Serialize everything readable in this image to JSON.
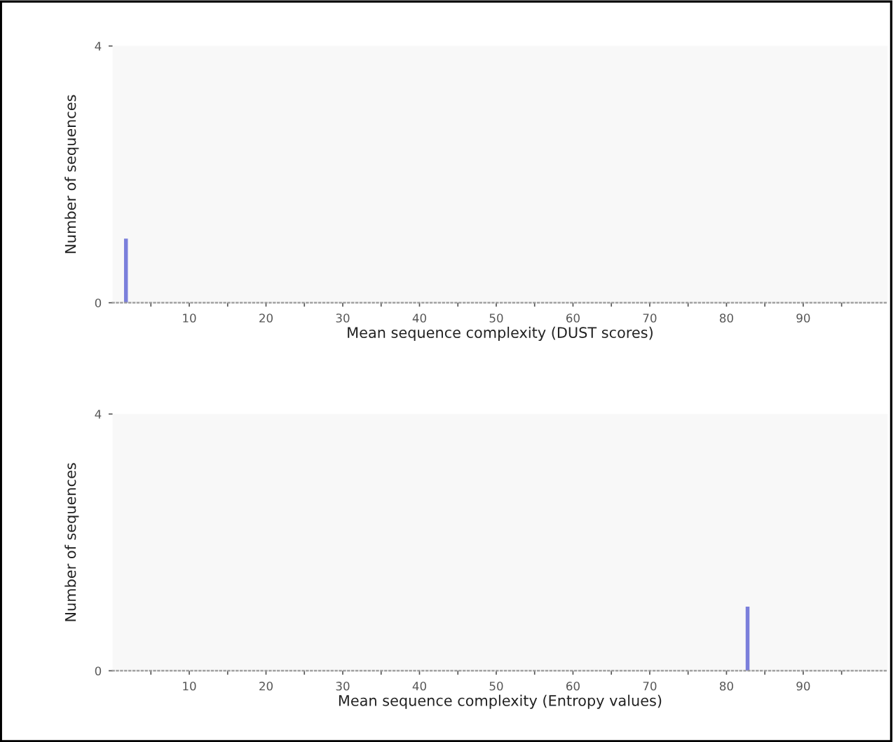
{
  "chart_data": [
    {
      "type": "histogram",
      "xlabel": "Mean sequence complexity (DUST scores)",
      "ylabel": "Number of sequences",
      "bins": [
        1.5,
        2.0
      ],
      "values": [
        1
      ],
      "color": "#7b7fdb",
      "xlim": [
        0,
        101
      ],
      "ylim": [
        0,
        4
      ],
      "yticks": [
        0,
        4
      ],
      "xticks": [
        {
          "value": 5,
          "label": null
        },
        10,
        {
          "value": 15,
          "label": null
        },
        20,
        {
          "value": 25,
          "label": null
        },
        30,
        {
          "value": 35,
          "label": null
        },
        40,
        {
          "value": 45,
          "label": null
        },
        50,
        {
          "value": 55,
          "label": null
        },
        60,
        {
          "value": 65,
          "label": null
        },
        70,
        {
          "value": 75,
          "label": null
        },
        80,
        {
          "value": 85,
          "label": null
        },
        90,
        {
          "value": 95,
          "label": null
        }
      ]
    },
    {
      "type": "histogram",
      "xlabel": "Mean sequence complexity (Entropy values)",
      "ylabel": "Number of sequences",
      "bins": [
        82.5,
        83.0
      ],
      "values": [
        1
      ],
      "color": "#7b7fdb",
      "xlim": [
        0,
        101
      ],
      "ylim": [
        0,
        4
      ],
      "yticks": [
        0,
        4
      ],
      "xticks": [
        {
          "value": 5,
          "label": null
        },
        10,
        {
          "value": 15,
          "label": null
        },
        20,
        {
          "value": 25,
          "label": null
        },
        30,
        {
          "value": 35,
          "label": null
        },
        40,
        {
          "value": 45,
          "label": null
        },
        50,
        {
          "value": 55,
          "label": null
        },
        60,
        {
          "value": 65,
          "label": null
        },
        70,
        {
          "value": 75,
          "label": null
        },
        80,
        {
          "value": 85,
          "label": null
        },
        90,
        {
          "value": 95,
          "label": null
        }
      ]
    }
  ]
}
